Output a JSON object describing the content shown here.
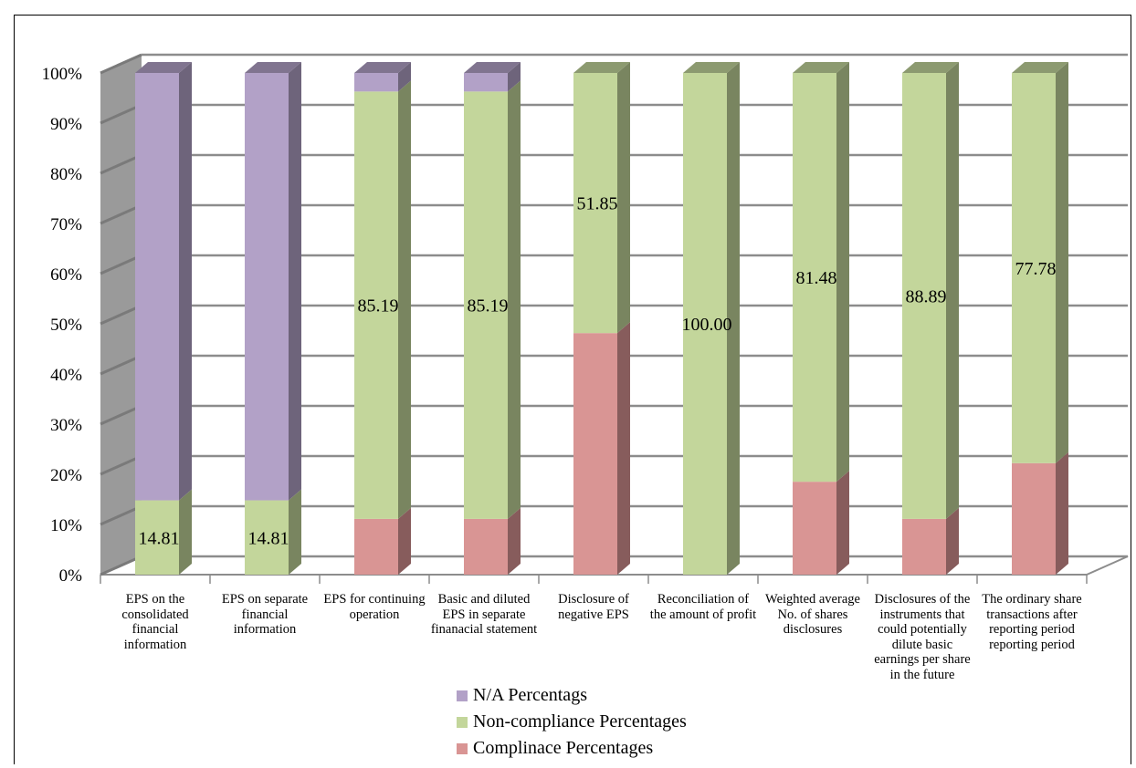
{
  "chart_data": {
    "type": "bar",
    "stacked": true,
    "three_d": true,
    "categories": [
      "EPS on the consolidated financial information",
      "EPS on separate financial information",
      "EPS for continuing operation",
      "Basic and diluted EPS in separate finanacial statement",
      "Disclosure of negative EPS",
      "Reconciliation of the amount of profit",
      "Weighted average No. of shares disclosures",
      "Disclosures of the instruments that could potentially dilute basic earnings per share in the future",
      "The ordinary share transactions after reporting period reporting period"
    ],
    "series": [
      {
        "name": "Complinace Percentages",
        "values": [
          0,
          0,
          11.11,
          11.11,
          48.15,
          0,
          18.52,
          11.11,
          22.22
        ]
      },
      {
        "name": "Non-compliance Percentages",
        "values": [
          14.81,
          14.81,
          85.19,
          85.19,
          51.85,
          100.0,
          81.48,
          88.89,
          77.78
        ]
      },
      {
        "name": "N/A Percentags",
        "values": [
          85.19,
          85.19,
          3.7,
          3.7,
          0,
          0,
          0,
          0,
          0
        ]
      }
    ],
    "data_labels": [
      "14.81",
      "14.81",
      "85.19",
      "85.19",
      "51.85",
      "100.00",
      "81.48",
      "88.89",
      "77.78"
    ],
    "yticks": [
      "0%",
      "10%",
      "20%",
      "30%",
      "40%",
      "50%",
      "60%",
      "70%",
      "80%",
      "90%",
      "100%"
    ],
    "ylim": [
      0,
      100
    ],
    "grid": true,
    "legend_position": "bottom-center",
    "colors": {
      "Complinace Percentages": "#d99594",
      "Non-compliance Percentages": "#c3d69b",
      "N/A Percentags": "#b2a1c7"
    }
  }
}
